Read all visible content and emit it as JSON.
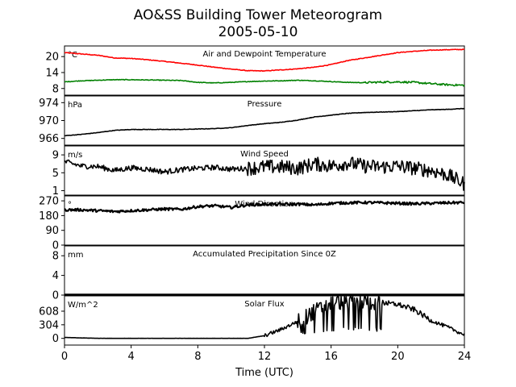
{
  "figure": {
    "title_line1": "AO&SS Building Tower Meteorogram",
    "title_line2": "2005-05-10",
    "xlabel": "Time (UTC)"
  },
  "chart_data": [
    {
      "type": "line",
      "title": "Air and Dewpoint Temperature",
      "unit": "°C",
      "ylim": [
        5.5,
        24
      ],
      "yticks": [
        8,
        14,
        20
      ],
      "xlim": [
        0,
        24
      ],
      "series": [
        {
          "color": "#ff0000",
          "x": [
            0,
            1,
            2,
            3,
            4,
            5,
            6,
            7,
            8,
            9,
            10,
            11,
            12,
            13,
            14,
            15,
            16,
            17,
            18,
            19,
            20,
            21,
            22,
            23,
            24
          ],
          "values": [
            21.5,
            21,
            20.5,
            19.5,
            19.3,
            18.8,
            18.2,
            17.5,
            16.8,
            16,
            15.3,
            14.7,
            14.6,
            15,
            15.4,
            16,
            17,
            18.5,
            19.5,
            20.5,
            21.5,
            22,
            22.4,
            22.6,
            22.7
          ]
        },
        {
          "color": "#008000",
          "x": [
            0,
            1,
            2,
            3,
            4,
            5,
            6,
            7,
            8,
            9,
            10,
            11,
            12,
            13,
            14,
            15,
            16,
            17,
            18,
            19,
            20,
            21,
            22,
            23,
            24
          ],
          "values": [
            10.5,
            10.9,
            11.1,
            11.3,
            11.3,
            11.2,
            11.1,
            11,
            10.3,
            10.1,
            10.3,
            10.6,
            10.8,
            10.9,
            11.1,
            10.9,
            10.6,
            10.3,
            10.2,
            10.4,
            10.5,
            10.3,
            9.8,
            9.4,
            9.2
          ]
        }
      ]
    },
    {
      "type": "line",
      "title": "Pressure",
      "unit": "hPa",
      "ylim": [
        964.5,
        975.5
      ],
      "yticks": [
        966,
        970,
        974
      ],
      "xlim": [
        0,
        24
      ],
      "series": [
        {
          "color": "#000000",
          "x": [
            0,
            1,
            2,
            3,
            4,
            5,
            6,
            7,
            8,
            9,
            10,
            11,
            12,
            13,
            14,
            15,
            16,
            17,
            18,
            19,
            20,
            21,
            22,
            23,
            24
          ],
          "values": [
            966.6,
            966.9,
            967.3,
            967.8,
            968.0,
            968.0,
            968.0,
            968.0,
            968.1,
            968.2,
            968.4,
            968.9,
            969.3,
            969.6,
            970.1,
            970.8,
            971.2,
            971.6,
            971.8,
            971.9,
            972.0,
            972.2,
            972.4,
            972.5,
            972.7
          ]
        }
      ]
    },
    {
      "type": "line",
      "title": "Wind Speed",
      "unit": "m/s",
      "ylim": [
        0,
        11
      ],
      "yticks": [
        1,
        5,
        9
      ],
      "xlim": [
        0,
        24
      ],
      "series": [
        {
          "color": "#000000",
          "x": [
            0,
            1,
            2,
            3,
            4,
            5,
            6,
            7,
            8,
            9,
            10,
            11,
            12,
            13,
            14,
            15,
            16,
            17,
            18,
            19,
            20,
            21,
            22,
            23,
            24
          ],
          "values": [
            7.5,
            6.5,
            6.4,
            5.5,
            6.1,
            5.8,
            5.2,
            5.7,
            6.0,
            6.2,
            5.8,
            6.0,
            6.3,
            6.3,
            6.0,
            7.0,
            6.5,
            7.2,
            6.5,
            6.3,
            6.5,
            6.0,
            5.5,
            4.5,
            2.5
          ]
        }
      ]
    },
    {
      "type": "scatter",
      "title": "Wind Direction",
      "unit": "°",
      "ylim": [
        0,
        300
      ],
      "yticks": [
        0,
        90,
        180,
        270
      ],
      "xlim": [
        0,
        24
      ],
      "series": [
        {
          "color": "#000000",
          "x": [
            0,
            1,
            2,
            3,
            4,
            5,
            6,
            7,
            8,
            9,
            10,
            11,
            12,
            13,
            14,
            15,
            16,
            17,
            18,
            19,
            20,
            21,
            22,
            23,
            24
          ],
          "values": [
            215,
            215,
            210,
            205,
            210,
            215,
            220,
            218,
            235,
            240,
            230,
            245,
            250,
            248,
            250,
            245,
            255,
            258,
            260,
            258,
            255,
            252,
            255,
            258,
            260
          ]
        }
      ]
    },
    {
      "type": "line",
      "title": "Accumulated Precipitation Since 0Z",
      "unit": "mm",
      "ylim": [
        0,
        10
      ],
      "yticks": [
        0,
        4,
        8
      ],
      "xlim": [
        0,
        24
      ],
      "series": [
        {
          "color": "#000000",
          "x": [
            0,
            24
          ],
          "values": [
            0,
            0
          ]
        }
      ]
    },
    {
      "type": "line",
      "title": "Solar Flux",
      "unit": "W/m^2",
      "ylim": [
        -150,
        950
      ],
      "yticks": [
        0,
        304,
        608
      ],
      "xlim": [
        0,
        24
      ],
      "series": [
        {
          "color": "#000000",
          "x": [
            0,
            1,
            2,
            3,
            4,
            5,
            6,
            7,
            8,
            9,
            10,
            11,
            12,
            13,
            14,
            15,
            16,
            17,
            18,
            19,
            20,
            21,
            22,
            23,
            24
          ],
          "values": [
            20,
            10,
            2,
            0,
            0,
            0,
            0,
            0,
            0,
            0,
            0,
            0,
            60,
            200,
            380,
            600,
            780,
            850,
            830,
            800,
            760,
            640,
            400,
            250,
            80
          ]
        }
      ]
    }
  ],
  "xaxis": {
    "ticks": [
      0,
      4,
      8,
      12,
      16,
      20,
      24
    ],
    "tick_labels": [
      "0",
      "4",
      "8",
      "12",
      "16",
      "20",
      "24"
    ]
  },
  "panel_titles": [
    "Air and Dewpoint Temperature",
    "Pressure",
    "Wind Speed",
    "Wind Direction",
    "Accumulated Precipitation Since 0Z",
    "Solar Flux"
  ],
  "panel_units": [
    "°C",
    "hPa",
    "m/s",
    "°",
    "mm",
    "W/m^2"
  ]
}
